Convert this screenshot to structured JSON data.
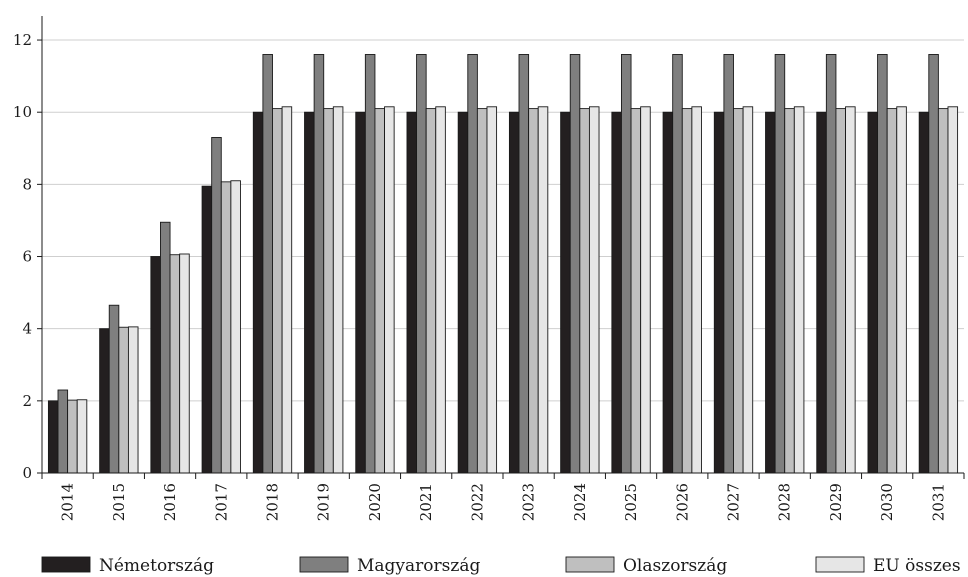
{
  "chart_data": {
    "type": "bar",
    "categories": [
      "2014",
      "2015",
      "2016",
      "2017",
      "2018",
      "2019",
      "2020",
      "2021",
      "2022",
      "2023",
      "2024",
      "2025",
      "2026",
      "2027",
      "2028",
      "2029",
      "2030",
      "2031"
    ],
    "series": [
      {
        "name": "Németország",
        "color": "#231f20",
        "values": [
          2.0,
          4.0,
          6.0,
          7.95,
          10.0,
          10.0,
          10.0,
          10.0,
          10.0,
          10.0,
          10.0,
          10.0,
          10.0,
          10.0,
          10.0,
          10.0,
          10.0,
          10.0
        ]
      },
      {
        "name": "Magyarország",
        "color": "#7f7f7f",
        "values": [
          2.3,
          4.65,
          6.95,
          9.3,
          11.6,
          11.6,
          11.6,
          11.6,
          11.6,
          11.6,
          11.6,
          11.6,
          11.6,
          11.6,
          11.6,
          11.6,
          11.6,
          11.6
        ]
      },
      {
        "name": "Olaszország",
        "color": "#bfbfbf",
        "values": [
          2.02,
          4.04,
          6.05,
          8.07,
          10.1,
          10.1,
          10.1,
          10.1,
          10.1,
          10.1,
          10.1,
          10.1,
          10.1,
          10.1,
          10.1,
          10.1,
          10.1,
          10.1
        ]
      },
      {
        "name": "EU összes",
        "color": "#e6e6e6",
        "values": [
          2.03,
          4.05,
          6.07,
          8.1,
          10.15,
          10.15,
          10.15,
          10.15,
          10.15,
          10.15,
          10.15,
          10.15,
          10.15,
          10.15,
          10.15,
          10.15,
          10.15,
          10.15
        ]
      }
    ],
    "yticks": [
      "0",
      "2",
      "4",
      "6",
      "8",
      "10",
      "12"
    ],
    "ylim": [
      0,
      12.5
    ],
    "title": "",
    "xlabel": "",
    "ylabel": "",
    "grid": "horizontal",
    "legend_position": "bottom"
  }
}
